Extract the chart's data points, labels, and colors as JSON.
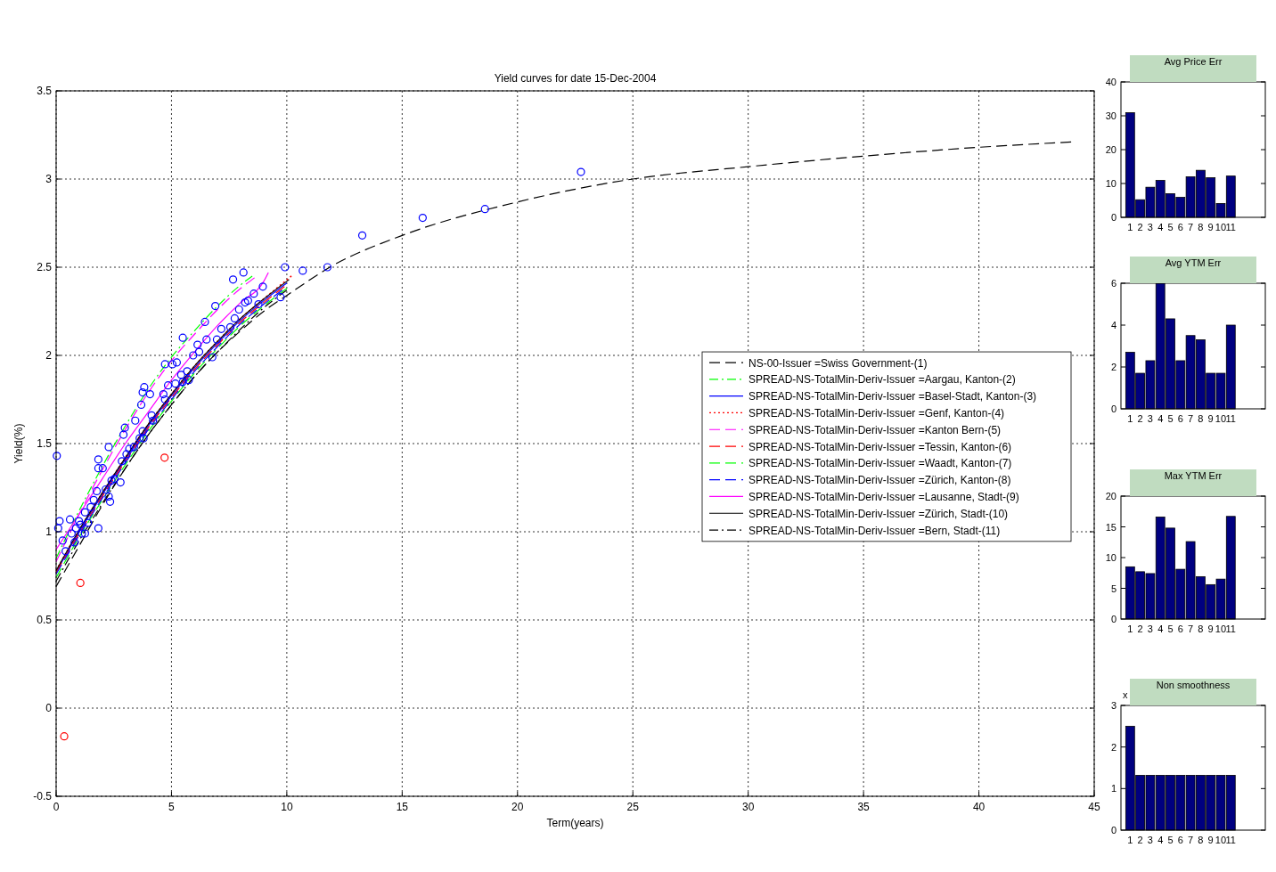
{
  "chart_data": [
    {
      "type": "line",
      "title": "Yield curves for date 15-Dec-2004",
      "xlabel": "Term(years)",
      "ylabel": "Yield(%)",
      "xlim": [
        0,
        45
      ],
      "ylim": [
        -0.5,
        3.5
      ],
      "xticks": [
        0,
        5,
        10,
        15,
        20,
        25,
        30,
        35,
        40,
        45
      ],
      "yticks": [
        -0.5,
        0,
        0.5,
        1,
        1.5,
        2,
        2.5,
        3,
        3.5
      ],
      "grid": true,
      "legend": "right",
      "series": [
        {
          "name": "NS-00-Issuer =Swiss Government-(1)",
          "line_style": "dashed",
          "color": "#000000",
          "x": [
            0,
            1,
            2,
            3,
            4,
            5,
            6,
            7,
            8,
            9,
            10,
            12,
            15,
            20,
            25,
            30,
            35,
            40,
            44
          ],
          "values": [
            0.69,
            0.92,
            1.15,
            1.36,
            1.55,
            1.72,
            1.88,
            2.02,
            2.14,
            2.25,
            2.34,
            2.51,
            2.68,
            2.87,
            3.0,
            3.07,
            3.13,
            3.18,
            3.21
          ]
        },
        {
          "name": "SPREAD-NS-TotalMin-Deriv-Issuer =Aargau, Kanton-(2)",
          "line_style": "dashdot",
          "color": "#00ff00",
          "x": [
            0,
            1,
            2,
            3,
            4,
            5,
            6,
            7,
            8,
            8.5
          ],
          "values": [
            0.85,
            1.12,
            1.37,
            1.6,
            1.81,
            1.99,
            2.14,
            2.28,
            2.4,
            2.45
          ]
        },
        {
          "name": "SPREAD-NS-TotalMin-Deriv-Issuer =Basel-Stadt, Kanton-(3)",
          "line_style": "solid",
          "color": "#0000ff",
          "x": [
            0,
            1,
            2,
            3,
            4,
            5,
            6,
            7,
            8,
            9,
            10
          ],
          "values": [
            0.77,
            1.0,
            1.21,
            1.41,
            1.6,
            1.77,
            1.93,
            2.07,
            2.2,
            2.31,
            2.41
          ]
        },
        {
          "name": "SPREAD-NS-TotalMin-Deriv-Issuer =Genf, Kanton-(4)",
          "line_style": "dotted",
          "color": "#ff0000",
          "x": [
            0,
            1,
            2,
            3,
            4,
            5,
            6,
            7,
            8,
            9,
            10.2
          ],
          "values": [
            0.78,
            1.01,
            1.22,
            1.42,
            1.61,
            1.78,
            1.94,
            2.08,
            2.21,
            2.32,
            2.45
          ]
        },
        {
          "name": "SPREAD-NS-TotalMin-Deriv-Issuer =Kanton Bern-(5)",
          "line_style": "dashed",
          "color": "#ff00ff",
          "x": [
            0,
            1,
            2,
            3,
            4,
            5,
            6,
            7,
            8,
            8.6
          ],
          "values": [
            0.83,
            1.1,
            1.35,
            1.58,
            1.79,
            1.97,
            2.12,
            2.26,
            2.38,
            2.44
          ]
        },
        {
          "name": "SPREAD-NS-TotalMin-Deriv-Issuer =Tessin, Kanton-(6)",
          "line_style": "dashed",
          "color": "#ff0000",
          "x": [
            0,
            1,
            2,
            3,
            4,
            5,
            6,
            7,
            8,
            9,
            9.9
          ],
          "values": [
            0.77,
            0.99,
            1.2,
            1.4,
            1.59,
            1.76,
            1.92,
            2.06,
            2.19,
            2.3,
            2.39
          ]
        },
        {
          "name": "SPREAD-NS-TotalMin-Deriv-Issuer =Waadt, Kanton-(7)",
          "line_style": "dashed",
          "color": "#00ff00",
          "x": [
            0,
            1,
            2,
            3,
            4,
            5,
            6,
            7,
            8,
            9,
            10
          ],
          "values": [
            0.74,
            0.97,
            1.18,
            1.38,
            1.57,
            1.74,
            1.9,
            2.04,
            2.17,
            2.28,
            2.38
          ]
        },
        {
          "name": "SPREAD-NS-TotalMin-Deriv-Issuer =Zürich, Kanton-(8)",
          "line_style": "dashed",
          "color": "#0000ff",
          "x": [
            0,
            1,
            2,
            3,
            4,
            5,
            6,
            7,
            8,
            9,
            9.8
          ],
          "values": [
            0.76,
            0.98,
            1.19,
            1.39,
            1.58,
            1.75,
            1.91,
            2.05,
            2.18,
            2.29,
            2.37
          ]
        },
        {
          "name": "SPREAD-NS-TotalMin-Deriv-Issuer =Lausanne, Stadt-(9)",
          "line_style": "solid",
          "color": "#ff00ff",
          "x": [
            0,
            1,
            2,
            3,
            4,
            5,
            6,
            7,
            8,
            9,
            9.2
          ],
          "values": [
            0.9,
            1.1,
            1.3,
            1.5,
            1.68,
            1.86,
            2.02,
            2.17,
            2.3,
            2.42,
            2.47
          ]
        },
        {
          "name": "SPREAD-NS-TotalMin-Deriv-Issuer =Zürich, Stadt-(10)",
          "line_style": "solid",
          "color": "#000000",
          "x": [
            0,
            1,
            2,
            3,
            4,
            5,
            6,
            7,
            8,
            9,
            10.1
          ],
          "values": [
            0.78,
            1.01,
            1.22,
            1.42,
            1.61,
            1.78,
            1.94,
            2.08,
            2.21,
            2.32,
            2.43
          ]
        },
        {
          "name": "SPREAD-NS-TotalMin-Deriv-Issuer =Bern, Stadt-(11)",
          "line_style": "dashdot",
          "color": "#000000",
          "x": [
            0,
            1,
            2,
            3,
            4,
            5,
            6,
            7,
            8,
            9,
            10
          ],
          "values": [
            0.72,
            0.95,
            1.16,
            1.36,
            1.55,
            1.72,
            1.88,
            2.02,
            2.15,
            2.27,
            2.37
          ]
        },
        {
          "type": "scatter",
          "marker": "circle",
          "color": "#0000ff",
          "x": [
            0.03,
            0.09,
            0.15,
            0.28,
            0.41,
            0.6,
            0.67,
            0.8,
            0.86,
            0.99,
            1.05,
            1.12,
            1.25,
            1.25,
            1.38,
            1.5,
            1.63,
            1.76,
            1.83,
            1.83,
            1.83,
            2.02,
            2.15,
            2.28,
            2.34,
            2.28,
            2.4,
            2.53,
            2.79,
            2.85,
            2.92,
            2.98,
            3.05,
            3.17,
            3.37,
            3.43,
            3.62,
            3.69,
            3.75,
            3.82,
            3.75,
            3.79,
            4.07,
            4.14,
            4.2,
            4.72,
            4.65,
            4.72,
            4.85,
            5.04,
            5.17,
            5.23,
            5.49,
            5.42,
            5.49,
            5.68,
            5.75,
            5.94,
            6.13,
            6.2,
            6.45,
            6.52,
            6.77,
            6.9,
            6.97,
            7.16,
            7.55,
            7.67,
            7.74,
            7.93,
            8.12,
            8.19,
            8.32,
            8.57,
            8.77,
            8.96,
            9.73,
            9.92,
            10.69,
            11.76,
            13.27,
            15.89,
            18.59,
            22.75
          ],
          "values": [
            1.43,
            1.02,
            1.06,
            0.95,
            0.89,
            1.07,
            0.99,
            0.94,
            1.02,
            1.06,
            1.04,
            0.99,
            1.11,
            0.99,
            1.05,
            1.14,
            1.18,
            1.23,
            1.36,
            1.41,
            1.02,
            1.36,
            1.24,
            1.2,
            1.17,
            1.48,
            1.29,
            1.3,
            1.28,
            1.4,
            1.55,
            1.59,
            1.44,
            1.47,
            1.48,
            1.63,
            1.53,
            1.72,
            1.79,
            1.82,
            1.57,
            1.53,
            1.78,
            1.66,
            1.63,
            1.95,
            1.78,
            1.75,
            1.83,
            1.95,
            1.84,
            1.96,
            2.1,
            1.89,
            1.85,
            1.91,
            1.86,
            2.0,
            2.06,
            2.02,
            2.19,
            2.09,
            1.99,
            2.28,
            2.09,
            2.15,
            2.16,
            2.43,
            2.21,
            2.26,
            2.47,
            2.3,
            2.31,
            2.35,
            2.29,
            2.39,
            2.33,
            2.5,
            2.48,
            2.5,
            2.68,
            2.78,
            2.83,
            3.04
          ]
        },
        {
          "type": "scatter",
          "marker": "circle",
          "color": "#ff0000",
          "x": [
            0.35,
            1.05,
            4.7
          ],
          "values": [
            -0.16,
            0.71,
            1.42
          ]
        }
      ]
    },
    {
      "type": "bar",
      "title": "Avg Price Err",
      "categories": [
        "1",
        "2",
        "3",
        "4",
        "5",
        "6",
        "7",
        "8",
        "9",
        "10",
        "11"
      ],
      "values": [
        30.9,
        5.2,
        8.9,
        10.9,
        7.0,
        5.9,
        12.0,
        13.9,
        11.7,
        4.1,
        12.2
      ],
      "color": "#000080",
      "ylim": [
        0,
        40
      ],
      "yticks": [
        0,
        10,
        20,
        30,
        40
      ]
    },
    {
      "type": "bar",
      "title": "Avg YTM Err",
      "categories": [
        "1",
        "2",
        "3",
        "4",
        "5",
        "6",
        "7",
        "8",
        "9",
        "10",
        "11"
      ],
      "values": [
        2.7,
        1.7,
        2.3,
        6.0,
        4.3,
        2.3,
        3.5,
        3.3,
        1.7,
        1.7,
        4.0
      ],
      "color": "#000080",
      "ylim": [
        0,
        6
      ],
      "yticks": [
        0,
        2,
        4,
        6
      ]
    },
    {
      "type": "bar",
      "title": "Max YTM Err",
      "categories": [
        "1",
        "2",
        "3",
        "4",
        "5",
        "6",
        "7",
        "8",
        "9",
        "10",
        "11"
      ],
      "values": [
        8.5,
        7.7,
        7.4,
        16.6,
        14.8,
        8.1,
        12.6,
        6.9,
        5.6,
        6.5,
        16.7
      ],
      "color": "#000080",
      "ylim": [
        0,
        20
      ],
      "yticks": [
        0,
        5,
        10,
        15,
        20
      ]
    },
    {
      "type": "bar",
      "title": "Non smoothness",
      "categories": [
        "1",
        "2",
        "3",
        "4",
        "5",
        "6",
        "7",
        "8",
        "9",
        "10",
        "11"
      ],
      "values": [
        2.5,
        1.32,
        1.32,
        1.32,
        1.32,
        1.32,
        1.32,
        1.32,
        1.32,
        1.32,
        1.32
      ],
      "color": "#000080",
      "ylim": [
        0,
        3
      ],
      "yticks": [
        0,
        1,
        2,
        3
      ],
      "annotations": [
        "x"
      ]
    }
  ]
}
